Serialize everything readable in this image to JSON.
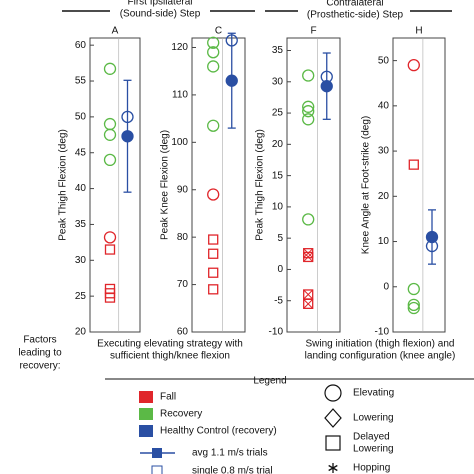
{
  "headings": {
    "first": [
      "First Ipsilateral",
      "(Sound-side) Step"
    ],
    "second": [
      "Contralateral",
      "(Prosthetic-side) Step"
    ]
  },
  "chart_data": [
    {
      "type": "scatter",
      "title": "A",
      "ylabel": "Peak Thigh Flexion (deg)",
      "ylim": [
        20,
        61
      ],
      "yticks": [
        20,
        25,
        30,
        35,
        40,
        45,
        50,
        55,
        60
      ],
      "points": [
        {
          "value": 56.7,
          "color": "#5bb946",
          "marker": "circle"
        },
        {
          "value": 49,
          "color": "#5bb946",
          "marker": "circle"
        },
        {
          "value": 47.5,
          "color": "#5bb946",
          "marker": "circle"
        },
        {
          "value": 44,
          "color": "#5bb946",
          "marker": "circle"
        },
        {
          "value": 33.2,
          "color": "#e0262b",
          "marker": "circle"
        },
        {
          "value": 31.5,
          "color": "#e0262b",
          "marker": "square"
        },
        {
          "value": 26,
          "color": "#e0262b",
          "marker": "square"
        },
        {
          "value": 25.4,
          "color": "#e0262b",
          "marker": "square"
        },
        {
          "value": 24.8,
          "color": "#e0262b",
          "marker": "square"
        }
      ],
      "mean": {
        "value": 47.3,
        "error": 7.8,
        "color": "#2a4fa3"
      },
      "single": {
        "value": 50,
        "color": "#2a4fa3"
      }
    },
    {
      "type": "scatter",
      "title": "C",
      "ylabel": "Peak Knee Flexion (deg)",
      "ylim": [
        60,
        122
      ],
      "yticks": [
        60,
        70,
        80,
        90,
        100,
        110,
        120
      ],
      "points": [
        {
          "value": 121,
          "color": "#5bb946",
          "marker": "circle"
        },
        {
          "value": 119,
          "color": "#5bb946",
          "marker": "circle"
        },
        {
          "value": 116,
          "color": "#5bb946",
          "marker": "circle"
        },
        {
          "value": 103.5,
          "color": "#5bb946",
          "marker": "circle"
        },
        {
          "value": 89,
          "color": "#e0262b",
          "marker": "circle"
        },
        {
          "value": 79.5,
          "color": "#e0262b",
          "marker": "square"
        },
        {
          "value": 76.5,
          "color": "#e0262b",
          "marker": "square"
        },
        {
          "value": 72.5,
          "color": "#e0262b",
          "marker": "square"
        },
        {
          "value": 69,
          "color": "#e0262b",
          "marker": "square"
        }
      ],
      "mean": {
        "value": 113,
        "error": 10,
        "color": "#2a4fa3"
      },
      "single": {
        "value": 121.5,
        "color": "#2a4fa3"
      }
    },
    {
      "type": "scatter",
      "title": "F",
      "ylabel": "Peak Thigh Flexion (deg)",
      "ylim": [
        -10,
        37
      ],
      "yticks": [
        -10,
        -5,
        0,
        5,
        10,
        15,
        20,
        25,
        30,
        35
      ],
      "points": [
        {
          "value": 31,
          "color": "#5bb946",
          "marker": "circle"
        },
        {
          "value": 26,
          "color": "#5bb946",
          "marker": "circle"
        },
        {
          "value": 25.3,
          "color": "#5bb946",
          "marker": "circle"
        },
        {
          "value": 24,
          "color": "#5bb946",
          "marker": "circle"
        },
        {
          "value": 8,
          "color": "#5bb946",
          "marker": "circle"
        },
        {
          "value": 2.6,
          "color": "#e0262b",
          "marker": "square-x"
        },
        {
          "value": 2,
          "color": "#e0262b",
          "marker": "square-x"
        },
        {
          "value": -4,
          "color": "#e0262b",
          "marker": "square-x"
        },
        {
          "value": -5.5,
          "color": "#e0262b",
          "marker": "square-x"
        }
      ],
      "mean": {
        "value": 29.3,
        "error": 5.3,
        "color": "#2a4fa3"
      },
      "single": {
        "value": 30.8,
        "color": "#2a4fa3"
      }
    },
    {
      "type": "scatter",
      "title": "H",
      "ylabel": "Knee Angle at Foot-strike (deg)",
      "ylim": [
        -10,
        55
      ],
      "yticks": [
        -10,
        0,
        10,
        20,
        30,
        40,
        50
      ],
      "points": [
        {
          "value": 49,
          "color": "#e0262b",
          "marker": "circle"
        },
        {
          "value": 27,
          "color": "#e0262b",
          "marker": "square"
        },
        {
          "value": -0.5,
          "color": "#5bb946",
          "marker": "circle"
        },
        {
          "value": -4,
          "color": "#5bb946",
          "marker": "circle"
        },
        {
          "value": -4.7,
          "color": "#5bb946",
          "marker": "circle"
        }
      ],
      "mean": {
        "value": 11,
        "error": 6,
        "color": "#2a4fa3"
      },
      "single": {
        "value": 9,
        "color": "#2a4fa3"
      }
    }
  ],
  "factors": [
    "Factors",
    "leading to",
    "recovery:"
  ],
  "notes": [
    [
      "Executing elevating strategy with",
      "sufficient thigh/knee flexion"
    ],
    [
      "Swing initiation (thigh flexion) and",
      "landing configuration (knee angle)"
    ]
  ],
  "legend": {
    "title": "Legend",
    "groups": [
      {
        "name": "Fall",
        "color": "#e0262b"
      },
      {
        "name": "Recovery",
        "color": "#5bb946"
      },
      {
        "name": "Healthy Control (recovery)",
        "color": "#2a4fa3"
      }
    ],
    "markers": [
      {
        "name": [
          "Elevating"
        ],
        "marker": "circle"
      },
      {
        "name": [
          "Lowering"
        ],
        "marker": "diamond"
      },
      {
        "name": [
          "Delayed",
          "Lowering"
        ],
        "marker": "square"
      },
      {
        "name": [
          "Hopping"
        ],
        "marker": "asterisk"
      }
    ],
    "trials": [
      "avg 1.1 m/s trials",
      "single 0.8 m/s trial"
    ]
  }
}
